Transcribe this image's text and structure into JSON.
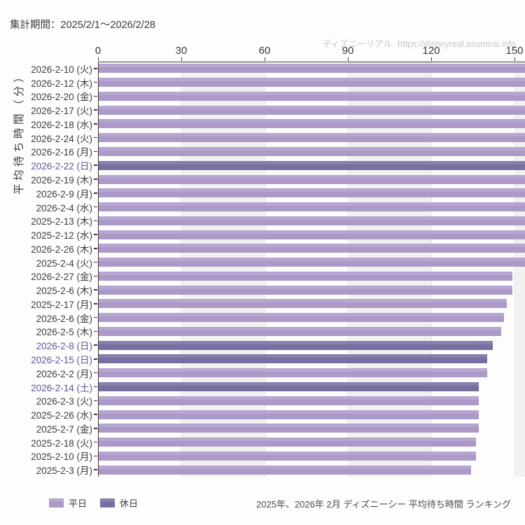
{
  "header": {
    "period": "集計期間：2025/2/1～2026/2/28"
  },
  "watermark": {
    "site_name": "ディズニーリアル",
    "url": "https://disneyreal.asumirai.info"
  },
  "footer": {
    "caption": "2025年、2026年 2月 ディズニーシー 平均待ち時間 ランキング"
  },
  "legend": {
    "weekday_label": "平日",
    "holiday_label": "休日"
  },
  "colors": {
    "weekday_bar": "#b09dca",
    "holiday_bar": "#7c75a6",
    "holiday_tick_label": "#5958a2",
    "weekday_tick_label": "#3d3d3d",
    "axis": "#3a3a3a",
    "band_gray": "#f1f1ef",
    "watermark_gray": "#c8c8c8"
  },
  "chart_data": {
    "type": "bar",
    "orientation": "horizontal",
    "title": "2025年、2026年 2月 ディズニーシー 平均待ち時間 ランキング",
    "ylabel": "平均待ち時間（分）",
    "xlabel": "",
    "xlim": [
      0,
      150
    ],
    "xticks": [
      "0",
      "30",
      "60",
      "90",
      "120",
      "150"
    ],
    "grid": "vertical-lines-with-alternating-bands",
    "legend_position": "bottom-left",
    "series_names": [
      "平日",
      "休日"
    ],
    "bars": [
      {
        "label": "2026-2-10 (火)",
        "series": "平日",
        "value": 155,
        "clipped": true
      },
      {
        "label": "2026-2-12 (木)",
        "series": "平日",
        "value": 155,
        "clipped": true
      },
      {
        "label": "2026-2-20 (金)",
        "series": "平日",
        "value": 155,
        "clipped": true
      },
      {
        "label": "2026-2-17 (火)",
        "series": "平日",
        "value": 155,
        "clipped": true
      },
      {
        "label": "2026-2-18 (水)",
        "series": "平日",
        "value": 155,
        "clipped": true
      },
      {
        "label": "2026-2-24 (火)",
        "series": "平日",
        "value": 155,
        "clipped": true
      },
      {
        "label": "2026-2-16 (月)",
        "series": "平日",
        "value": 155,
        "clipped": true
      },
      {
        "label": "2026-2-22 (日)",
        "series": "休日",
        "value": 155,
        "clipped": true
      },
      {
        "label": "2026-2-19 (木)",
        "series": "平日",
        "value": 155,
        "clipped": true
      },
      {
        "label": "2026-2-9 (月)",
        "series": "平日",
        "value": 155,
        "clipped": true
      },
      {
        "label": "2026-2-4 (水)",
        "series": "平日",
        "value": 155,
        "clipped": true
      },
      {
        "label": "2025-2-13 (木)",
        "series": "平日",
        "value": 155,
        "clipped": true
      },
      {
        "label": "2025-2-12 (水)",
        "series": "平日",
        "value": 155,
        "clipped": true
      },
      {
        "label": "2026-2-26 (木)",
        "series": "平日",
        "value": 155,
        "clipped": true
      },
      {
        "label": "2025-2-4 (火)",
        "series": "平日",
        "value": 155,
        "clipped": true
      },
      {
        "label": "2026-2-27 (金)",
        "series": "平日",
        "value": 149,
        "clipped": false
      },
      {
        "label": "2025-2-6 (木)",
        "series": "平日",
        "value": 149,
        "clipped": false
      },
      {
        "label": "2025-2-17 (月)",
        "series": "平日",
        "value": 147,
        "clipped": false
      },
      {
        "label": "2026-2-6 (金)",
        "series": "平日",
        "value": 146,
        "clipped": false
      },
      {
        "label": "2026-2-5 (木)",
        "series": "平日",
        "value": 145,
        "clipped": false
      },
      {
        "label": "2026-2-8 (日)",
        "series": "休日",
        "value": 142,
        "clipped": false
      },
      {
        "label": "2026-2-15 (日)",
        "series": "休日",
        "value": 140,
        "clipped": false
      },
      {
        "label": "2026-2-2 (月)",
        "series": "平日",
        "value": 140,
        "clipped": false
      },
      {
        "label": "2026-2-14 (土)",
        "series": "休日",
        "value": 137,
        "clipped": false
      },
      {
        "label": "2026-2-3 (火)",
        "series": "平日",
        "value": 137,
        "clipped": false
      },
      {
        "label": "2025-2-26 (水)",
        "series": "平日",
        "value": 137,
        "clipped": false
      },
      {
        "label": "2025-2-7 (金)",
        "series": "平日",
        "value": 137,
        "clipped": false
      },
      {
        "label": "2025-2-18 (火)",
        "series": "平日",
        "value": 136,
        "clipped": false
      },
      {
        "label": "2025-2-10 (月)",
        "series": "平日",
        "value": 136,
        "clipped": false
      },
      {
        "label": "2025-2-3 (月)",
        "series": "平日",
        "value": 134,
        "clipped": false
      }
    ]
  }
}
